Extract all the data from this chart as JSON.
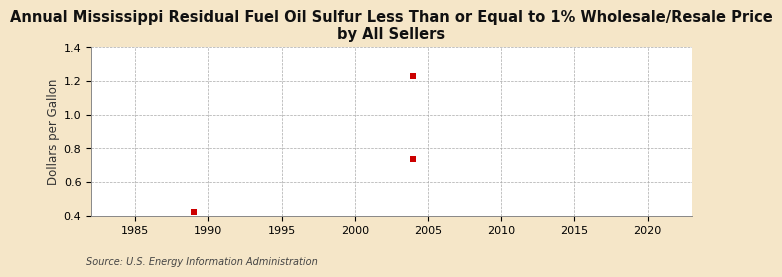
{
  "title": "Annual Mississippi Residual Fuel Oil Sulfur Less Than or Equal to 1% Wholesale/Resale Price\nby All Sellers",
  "ylabel": "Dollars per Gallon",
  "source": "Source: U.S. Energy Information Administration",
  "background_color": "#f5e6c8",
  "plot_bg_color": "#ffffff",
  "data_x": [
    1989,
    2004,
    2004
  ],
  "data_y": [
    0.42,
    0.74,
    1.23
  ],
  "marker_color": "#cc0000",
  "marker_size": 18,
  "xlim": [
    1982,
    2023
  ],
  "ylim": [
    0.4,
    1.4
  ],
  "xticks": [
    1985,
    1990,
    1995,
    2000,
    2005,
    2010,
    2015,
    2020
  ],
  "yticks": [
    0.4,
    0.6,
    0.8,
    1.0,
    1.2,
    1.4
  ],
  "title_fontsize": 10.5,
  "ylabel_fontsize": 8.5,
  "tick_fontsize": 8,
  "source_fontsize": 7
}
